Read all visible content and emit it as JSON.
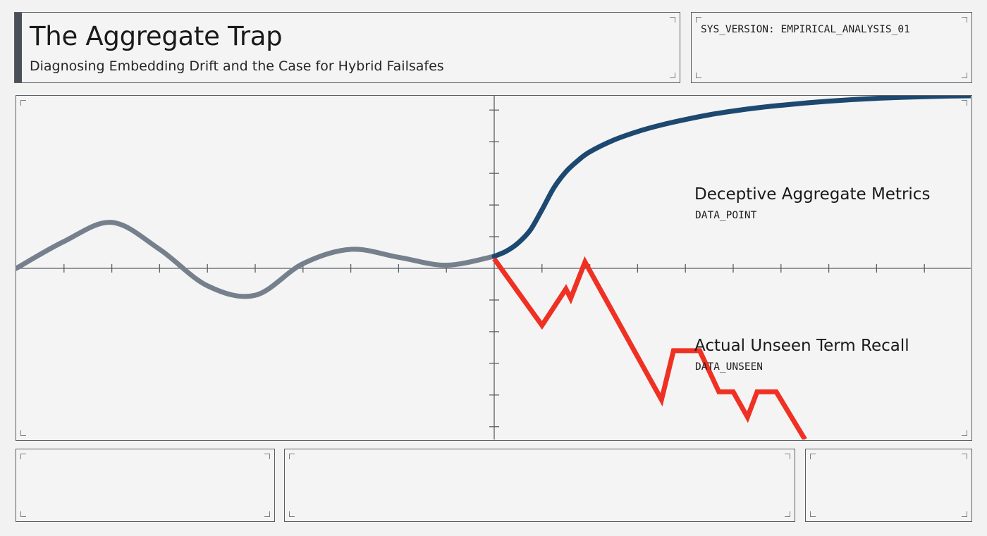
{
  "header": {
    "title": "The Aggregate Trap",
    "subtitle": "Diagnosing Embedding Drift and the Case for Hybrid Failsafes",
    "version": "SYS_VERSION: EMPIRICAL_ANALYSIS_01"
  },
  "chart_data": {
    "type": "line",
    "grid": false,
    "colors": {
      "baseline": "#76808d",
      "aggregate": "#1d4870",
      "unseen": "#ef3124"
    },
    "series": [
      {
        "name": "Deceptive Aggregate Metrics",
        "tag": "DATA_POINT",
        "color": "#1d4870",
        "x": [
          0.0,
          0.25,
          0.5,
          0.75,
          1.0,
          1.25,
          1.5,
          1.75,
          2.0,
          2.5,
          3.0,
          3.5,
          4.0,
          4.5,
          5.0,
          5.5,
          6.0,
          6.5,
          7.0,
          7.5,
          8.0,
          8.5,
          9.0,
          9.5,
          10.0
        ],
        "y": [
          0.38,
          0.54,
          0.8,
          1.2,
          1.85,
          2.55,
          3.05,
          3.4,
          3.68,
          4.05,
          4.32,
          4.53,
          4.7,
          4.85,
          4.97,
          5.07,
          5.15,
          5.22,
          5.28,
          5.33,
          5.37,
          5.4,
          5.42,
          5.44,
          5.45
        ]
      },
      {
        "name": "Actual Unseen Term Recall",
        "tag": "DATA_UNSEEN",
        "color": "#ef3124",
        "x": [
          0.0,
          1.0,
          1.5,
          1.6,
          1.9,
          3.5,
          3.75,
          4.3,
          4.7,
          5.0,
          5.3,
          5.5,
          5.9,
          6.5
        ],
        "y": [
          0.3,
          -1.8,
          -0.65,
          -0.95,
          0.2,
          -4.15,
          -2.6,
          -2.6,
          -3.9,
          -3.9,
          -4.7,
          -3.9,
          -3.9,
          -5.4
        ]
      }
    ],
    "baseline": {
      "x": [
        -10.0,
        -9.0,
        -8.0,
        -7.0,
        -6.0,
        -5.0,
        -4.0,
        -3.0,
        -2.0,
        -1.0,
        0.0
      ],
      "y": [
        0.0,
        0.85,
        1.45,
        0.6,
        -0.55,
        -0.85,
        0.15,
        0.6,
        0.35,
        0.1,
        0.38
      ]
    },
    "xlim": [
      -10.0,
      10.0
    ],
    "ylim": [
      -5.45,
      5.45
    ]
  }
}
